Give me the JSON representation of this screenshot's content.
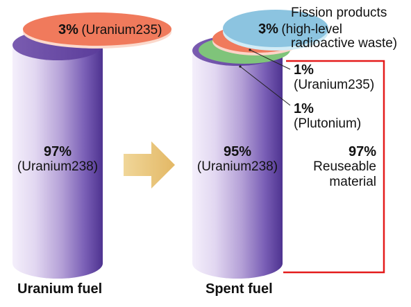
{
  "left": {
    "top_pct": "3%",
    "top_name": "(Uranium235)",
    "body_pct": "97%",
    "body_name": "(Uranium238)",
    "caption": "Uranium  fuel"
  },
  "right": {
    "top_pct": "3%",
    "top_name_line1": "(high-level",
    "top_name_line2": "radioactive waste)",
    "fission_title": "Fission products",
    "u235_pct": "1%",
    "u235_name": "(Uranium235)",
    "pu_pct": "1%",
    "pu_name": "(Plutonium)",
    "body_pct": "95%",
    "body_name": "(Uranium238)",
    "reusable_pct": "97%",
    "reusable_line1": "Reuseable",
    "reusable_line2": "material",
    "caption": "Spent  fuel"
  },
  "colors": {
    "cylinder_light": "#f2ecfa",
    "cylinder_mid": "#b7a3d8",
    "cylinder_dark": "#5a3c9a",
    "uranium235_disc": "#f07a5c",
    "fission_disc": "#8cc4e0",
    "plutonium_disc": "#7fc47a",
    "arrow": "#e8c47e",
    "bracket": "#e41b1b"
  },
  "icons": {
    "arrow": "right-arrow-icon"
  }
}
